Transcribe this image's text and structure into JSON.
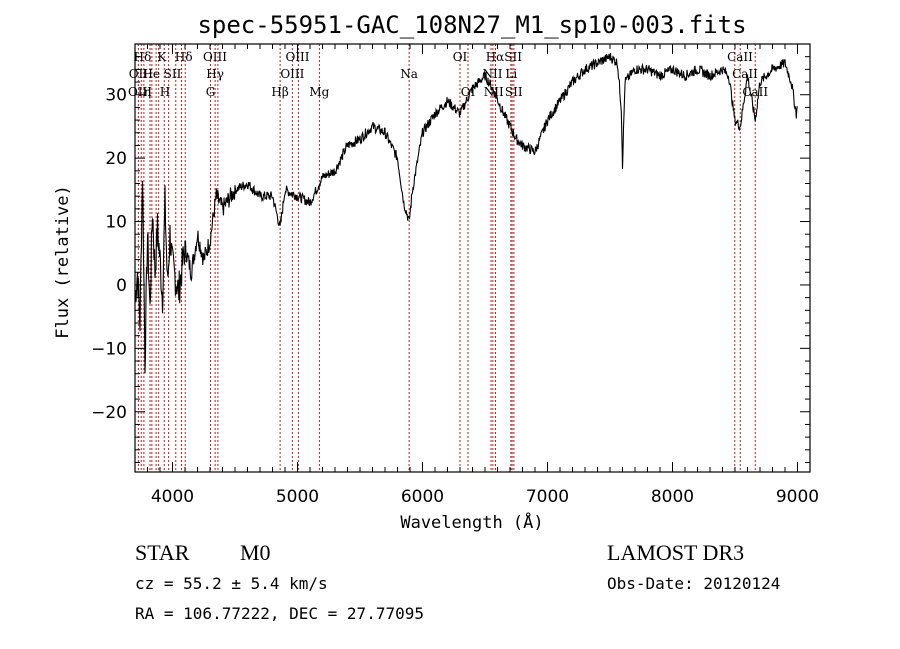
{
  "chart_data": {
    "type": "line",
    "title": "spec-55951-GAC_108N27_M1_sp10-003.fits",
    "xlabel": "Wavelength (Å)",
    "ylabel": "Flux (relative)",
    "xlim": [
      3700,
      9100
    ],
    "ylim": [
      -29.5,
      38
    ],
    "x_ticks": [
      4000,
      5000,
      6000,
      7000,
      8000,
      9000
    ],
    "y_ticks": [
      -20,
      -10,
      0,
      10,
      20,
      30
    ],
    "series": [
      {
        "name": "spectrum",
        "x": [
          3700,
          3720,
          3740,
          3760,
          3780,
          3800,
          3820,
          3840,
          3860,
          3880,
          3900,
          3920,
          3940,
          3960,
          3980,
          4000,
          4050,
          4100,
          4150,
          4200,
          4250,
          4300,
          4350,
          4400,
          4500,
          4600,
          4700,
          4800,
          4861,
          4900,
          5000,
          5100,
          5200,
          5300,
          5400,
          5500,
          5600,
          5700,
          5800,
          5850,
          5893,
          5920,
          6000,
          6100,
          6200,
          6300,
          6400,
          6450,
          6500,
          6560,
          6650,
          6750,
          6800,
          6900,
          7000,
          7100,
          7200,
          7300,
          7400,
          7500,
          7560,
          7590,
          7600,
          7620,
          7700,
          7800,
          7900,
          8000,
          8100,
          8200,
          8300,
          8400,
          8450,
          8498,
          8542,
          8600,
          8662,
          8700,
          8800,
          8900,
          8950,
          8990,
          9000
        ],
        "y": [
          -2,
          2,
          -6,
          18,
          -12,
          8,
          -4,
          12,
          2,
          9,
          4,
          -2,
          13,
          0,
          8,
          3,
          -1,
          6,
          2,
          8,
          4,
          7,
          14,
          12,
          15,
          16,
          14,
          14,
          9,
          15,
          14,
          13,
          17,
          18,
          22,
          23,
          25,
          24,
          20,
          13,
          10,
          15,
          24,
          27,
          29,
          27,
          31,
          32,
          33,
          31,
          27,
          23,
          22,
          21,
          26,
          29,
          32,
          34,
          35,
          36,
          35,
          28,
          19,
          32,
          34,
          34,
          33,
          34,
          33,
          34,
          33,
          34,
          33,
          26,
          25,
          33,
          26,
          32,
          34,
          35,
          32,
          27,
          28
        ]
      }
    ],
    "lines": [
      {
        "x": 3727,
        "labels": [
          "OII"
        ]
      },
      {
        "x": 3750,
        "labels": [
          "Hθ"
        ]
      },
      {
        "x": 3771,
        "labels": [
          "Hη"
        ]
      },
      {
        "x": 3820,
        "labels": [
          "HeI"
        ]
      },
      {
        "x": 3835,
        "labels": [
          "Hη"
        ]
      },
      {
        "x": 3869,
        "labels": [
          "NeIII"
        ]
      },
      {
        "x": 3889,
        "labels": [
          "Hζ"
        ]
      },
      {
        "x": 3934,
        "labels": [
          "K"
        ]
      },
      {
        "x": 3969,
        "labels": [
          "H"
        ]
      },
      {
        "x": 4026,
        "labels": [
          "HeI"
        ]
      },
      {
        "x": 4072,
        "labels": [
          "SII"
        ]
      },
      {
        "x": 4102,
        "labels": [
          "Hδ"
        ]
      },
      {
        "x": 4304,
        "labels": [
          "G"
        ]
      },
      {
        "x": 4341,
        "labels": [
          "Hγ"
        ]
      },
      {
        "x": 4363,
        "labels": [
          "OIII"
        ]
      },
      {
        "x": 4861,
        "labels": [
          "Hβ"
        ]
      },
      {
        "x": 4959,
        "labels": [
          "OIII"
        ]
      },
      {
        "x": 5007,
        "labels": [
          "OIII"
        ]
      },
      {
        "x": 5175,
        "labels": [
          "Mg"
        ]
      },
      {
        "x": 5893,
        "labels": [
          "Na"
        ]
      },
      {
        "x": 6300,
        "labels": [
          "OI"
        ]
      },
      {
        "x": 6364,
        "labels": [
          "OI"
        ]
      },
      {
        "x": 6548,
        "labels": [
          "NII"
        ]
      },
      {
        "x": 6563,
        "labels": [
          "Hα"
        ]
      },
      {
        "x": 6584,
        "labels": [
          "NII"
        ]
      },
      {
        "x": 6707,
        "labels": [
          "Li"
        ]
      },
      {
        "x": 6717,
        "labels": [
          "SII"
        ]
      },
      {
        "x": 6731,
        "labels": [
          "SII"
        ]
      },
      {
        "x": 8498,
        "labels": [
          "CaII"
        ]
      },
      {
        "x": 8542,
        "labels": [
          "CaII"
        ]
      },
      {
        "x": 8662,
        "labels": [
          "CaII"
        ]
      }
    ],
    "line_labels_visible": [
      {
        "text": "Hδ",
        "x": 3760,
        "row": 0
      },
      {
        "text": "K",
        "x": 3915,
        "row": 0
      },
      {
        "text": "Hδ",
        "x": 4090,
        "row": 0
      },
      {
        "text": "OIII",
        "x": 4340,
        "row": 0
      },
      {
        "text": "OIII",
        "x": 5000,
        "row": 0
      },
      {
        "text": "OI",
        "x": 6300,
        "row": 0
      },
      {
        "text": "Hα",
        "x": 6580,
        "row": 0
      },
      {
        "text": "SII",
        "x": 6725,
        "row": 0
      },
      {
        "text": "CaII",
        "x": 8540,
        "row": 0
      },
      {
        "text": "OII",
        "x": 3727,
        "row": 1
      },
      {
        "text": "He",
        "x": 3830,
        "row": 1
      },
      {
        "text": "SII",
        "x": 4000,
        "row": 1
      },
      {
        "text": "Hγ",
        "x": 4341,
        "row": 1
      },
      {
        "text": "OIII",
        "x": 4959,
        "row": 1
      },
      {
        "text": "Na",
        "x": 5893,
        "row": 1
      },
      {
        "text": "NII",
        "x": 6560,
        "row": 1
      },
      {
        "text": "Li",
        "x": 6710,
        "row": 1
      },
      {
        "text": "CaII",
        "x": 8580,
        "row": 1
      },
      {
        "text": "OIII",
        "x": 3740,
        "row": 2
      },
      {
        "text": "η",
        "x": 3800,
        "row": 2
      },
      {
        "text": "H",
        "x": 3940,
        "row": 2
      },
      {
        "text": "G",
        "x": 4304,
        "row": 2
      },
      {
        "text": "Hβ",
        "x": 4861,
        "row": 2
      },
      {
        "text": "Mg",
        "x": 5175,
        "row": 2
      },
      {
        "text": "OI",
        "x": 6364,
        "row": 2
      },
      {
        "text": "NII",
        "x": 6570,
        "row": 2
      },
      {
        "text": "SII",
        "x": 6730,
        "row": 2
      },
      {
        "text": "CaII",
        "x": 8662,
        "row": 2
      }
    ]
  },
  "info": {
    "object_class": "STAR",
    "subclass": "M0",
    "survey": "LAMOST DR3",
    "cz": "cz = 55.2 ± 5.4 km/s",
    "obs_date": "Obs-Date: 20120124",
    "coords": "RA = 106.77222, DEC =  27.77095"
  }
}
